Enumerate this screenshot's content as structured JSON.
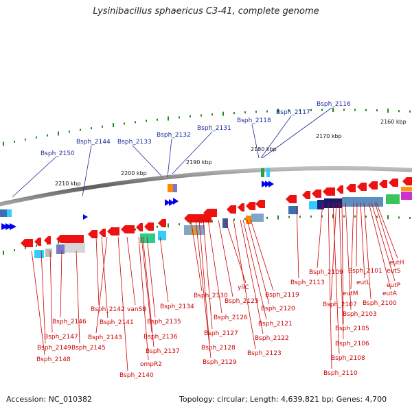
{
  "title": "Lysinibacillus sphaericus C3-41, complete genome",
  "footer": {
    "accession": "Accession: NC_010382",
    "topology": "Topology: circular; Length: 4,639,821 bp; Genes: 4,700"
  },
  "ticks": [
    "2160 kbp",
    "2170 kbp",
    "2180 kbp",
    "2190 kbp",
    "2200 kbp",
    "2210 kbp"
  ],
  "forward_genes": [
    "Bsph_2150",
    "Bsph_2144",
    "Bsph_2133",
    "Bsph_2132",
    "Bsph_2131",
    "Bsph_2118",
    "Bsph_2117",
    "Bsph_2116"
  ],
  "reverse_genes": [
    "eutH",
    "eutS",
    "eutP",
    "eutA",
    "Bsph_2101",
    "eutL",
    "eutM",
    "Bsph_2100",
    "Bsph_2109",
    "Bsph_2107",
    "Bsph_2103",
    "Bsph_2105",
    "Bsph_2106",
    "Bsph_2108",
    "Bsph_2110",
    "Bsph_2113",
    "Bsph_2119",
    "Bsph_2120",
    "Bsph_2121",
    "Bsph_2122",
    "Bsph_2123",
    "yliC",
    "Bsph_2125",
    "Bsph_2126",
    "Bsph_2127",
    "Bsph_2128",
    "Bsph_2129",
    "Bsph_2130",
    "Bsph_2134",
    "Bsph_2135",
    "Bsph_2136",
    "Bsph_2137",
    "ompR2",
    "Bsph_2140",
    "vanSB",
    "Bsph_2142",
    "Bsph_2141",
    "Bsph_2143",
    "Bsph_2145",
    "Bsph_2146",
    "Bsph_2147",
    "Bsph_2149",
    "Bsph_2148"
  ],
  "colors": {
    "forward_arrow": "#0000ee",
    "reverse_arrow": "#ee1111",
    "backbone": "#777777",
    "tick_green": "#1b8a1b",
    "forward_label": "#1a2a9a",
    "reverse_label": "#cc0000"
  }
}
